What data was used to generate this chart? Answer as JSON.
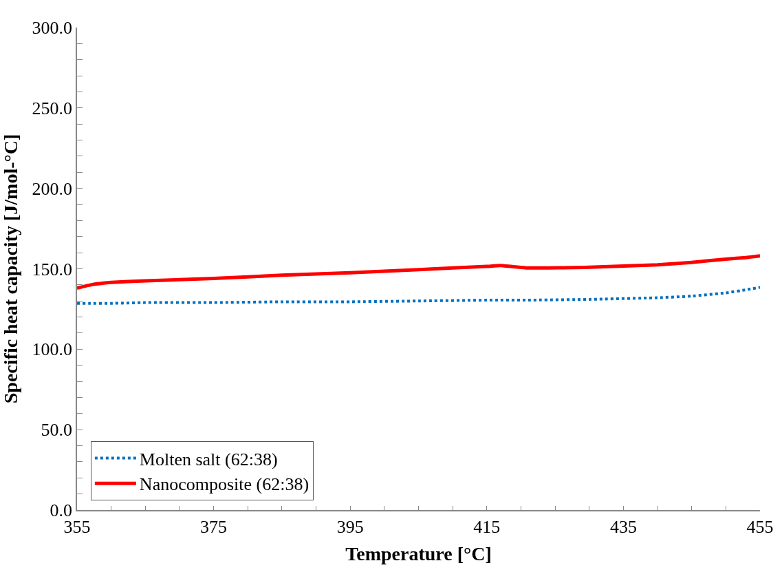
{
  "chart_data": {
    "type": "line",
    "xlabel": "Temperature [°C]",
    "ylabel": "Specific heat capacity [J/mol-°C]",
    "x": [
      355,
      357,
      360,
      365,
      375,
      385,
      395,
      405,
      415,
      417,
      421,
      430,
      440,
      445,
      450,
      453,
      455
    ],
    "series": [
      {
        "name": "Molten salt (62:38)",
        "color": "#0070c0",
        "line_style": "dotted",
        "values": [
          128.5,
          128.5,
          128.5,
          129,
          129,
          129.5,
          129.5,
          130,
          130.5,
          130.5,
          130.5,
          131,
          132,
          133,
          135,
          137,
          138.5
        ]
      },
      {
        "name": "Nanocomposite (62:38)",
        "color": "#ff0000",
        "line_style": "solid",
        "values": [
          138,
          140,
          141.5,
          142.5,
          144,
          146,
          147.5,
          149.5,
          151.5,
          152,
          150.5,
          151,
          152.5,
          154,
          156,
          157,
          158
        ]
      }
    ],
    "xlim": [
      355,
      455
    ],
    "xticks": [
      355,
      {
        "value": 360,
        "label": null
      },
      {
        "value": 365,
        "label": null
      },
      {
        "value": 370,
        "label": null
      },
      375,
      {
        "value": 380,
        "label": null
      },
      {
        "value": 385,
        "label": null
      },
      {
        "value": 390,
        "label": null
      },
      395,
      {
        "value": 400,
        "label": null
      },
      {
        "value": 405,
        "label": null
      },
      {
        "value": 410,
        "label": null
      },
      415,
      {
        "value": 420,
        "label": null
      },
      {
        "value": 425,
        "label": null
      },
      {
        "value": 430,
        "label": null
      },
      435,
      {
        "value": 440,
        "label": null
      },
      {
        "value": 445,
        "label": null
      },
      {
        "value": 450,
        "label": null
      },
      455
    ],
    "ylim": [
      0,
      300
    ],
    "yticks": [
      {
        "value": 0,
        "label": "0.0"
      },
      {
        "value": 10,
        "label": null
      },
      {
        "value": 20,
        "label": null
      },
      {
        "value": 30,
        "label": null
      },
      {
        "value": 40,
        "label": null
      },
      {
        "value": 50,
        "label": "50.0"
      },
      {
        "value": 60,
        "label": null
      },
      {
        "value": 70,
        "label": null
      },
      {
        "value": 80,
        "label": null
      },
      {
        "value": 90,
        "label": null
      },
      {
        "value": 100,
        "label": "100.0"
      },
      {
        "value": 110,
        "label": null
      },
      {
        "value": 120,
        "label": null
      },
      {
        "value": 130,
        "label": null
      },
      {
        "value": 140,
        "label": null
      },
      {
        "value": 150,
        "label": "150.0"
      },
      {
        "value": 160,
        "label": null
      },
      {
        "value": 170,
        "label": null
      },
      {
        "value": 180,
        "label": null
      },
      {
        "value": 190,
        "label": null
      },
      {
        "value": 200,
        "label": "200.0"
      },
      {
        "value": 210,
        "label": null
      },
      {
        "value": 220,
        "label": null
      },
      {
        "value": 230,
        "label": null
      },
      {
        "value": 240,
        "label": null
      },
      {
        "value": 250,
        "label": "250.0"
      },
      {
        "value": 260,
        "label": null
      },
      {
        "value": 270,
        "label": null
      },
      {
        "value": 280,
        "label": null
      },
      {
        "value": 290,
        "label": null
      },
      {
        "value": 300,
        "label": "300.0"
      }
    ],
    "legend": "bottom left",
    "marker": "none"
  }
}
